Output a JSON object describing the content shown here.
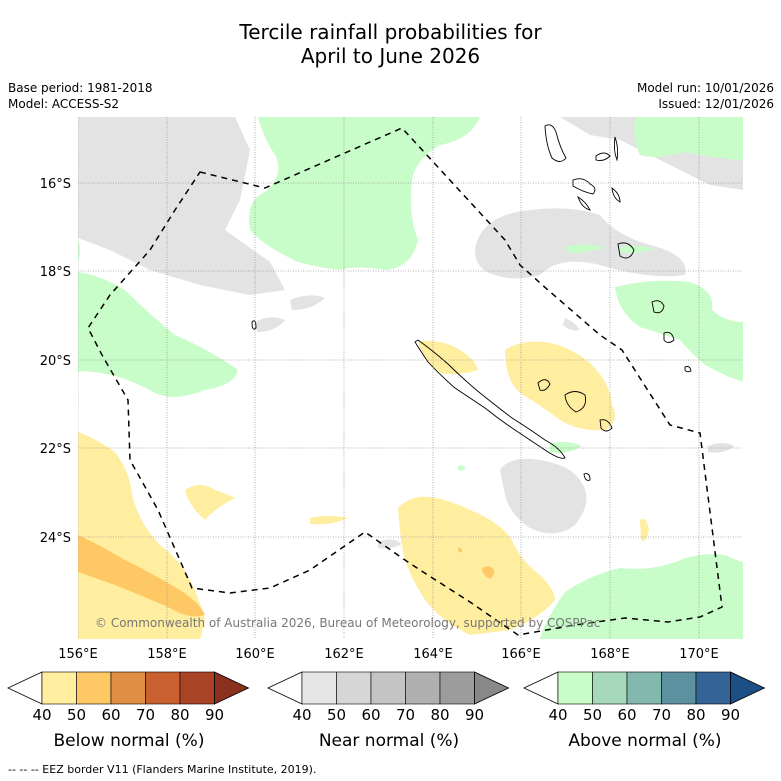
{
  "title_line1": "Tercile rainfall probabilities for",
  "title_line2": "April to June 2026",
  "base_period": "Base period: 1981-2018",
  "model": "Model: ACCESS-S2",
  "model_run": "Model run: 10/01/2026",
  "issued": "Issued: 12/01/2026",
  "copyright": "© Commonwealth of Australia 2026, Bureau of Meteorology, supported by COSPPac",
  "lat_labels": [
    "16°S",
    "18°S",
    "20°S",
    "22°S",
    "24°S"
  ],
  "lon_labels": [
    "156°E",
    "158°E",
    "160°E",
    "162°E",
    "164°E",
    "166°E",
    "168°E",
    "170°E"
  ],
  "colorbars": {
    "below": {
      "title": "Below normal (%)",
      "ticks": [
        "40",
        "50",
        "60",
        "70",
        "80",
        "90"
      ],
      "colors": [
        "#ffffff",
        "#ffeda0",
        "#fec965",
        "#e08e45",
        "#c86030",
        "#a84425",
        "#8b2f1e"
      ]
    },
    "near": {
      "title": "Near normal (%)",
      "ticks": [
        "40",
        "50",
        "60",
        "70",
        "80",
        "90"
      ],
      "colors": [
        "#ffffff",
        "#e6e6e6",
        "#d6d6d6",
        "#c4c4c4",
        "#b0b0b0",
        "#9c9c9c",
        "#888888"
      ]
    },
    "above": {
      "title": "Above normal (%)",
      "ticks": [
        "40",
        "50",
        "60",
        "70",
        "80",
        "90"
      ],
      "colors": [
        "#ffffff",
        "#c8fcc8",
        "#a6d9bc",
        "#82b8ae",
        "#5c92a0",
        "#346496",
        "#1b4f86"
      ]
    }
  },
  "footer": "--  --  -- EEZ border V11 (Flanders Marine Institute, 2019)."
}
